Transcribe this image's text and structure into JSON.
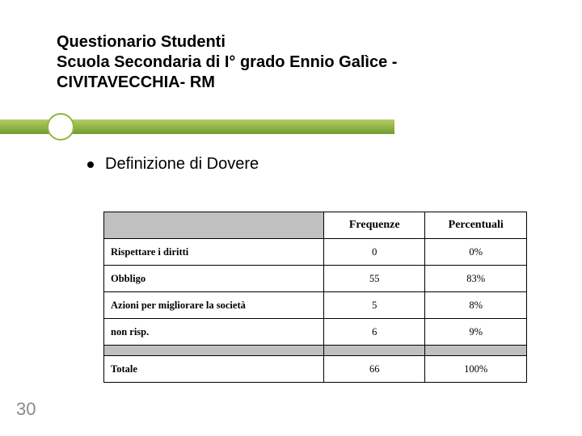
{
  "title": {
    "line1": "Questionario Studenti",
    "line2": " Scuola Secondaria di I° grado Ennio Galìce -",
    "line3": "CIVITAVECCHIA- RM"
  },
  "bullet": "Definizione di Dovere",
  "table": {
    "columns": [
      "",
      "Frequenze",
      "Percentuali"
    ],
    "rows": [
      {
        "label": "Rispettare i diritti",
        "freq": "0",
        "pct": "0%"
      },
      {
        "label": "Obbligo",
        "freq": "55",
        "pct": "83%"
      },
      {
        "label": "Azioni per migliorare la società",
        "freq": "5",
        "pct": "8%"
      },
      {
        "label": "non risp.",
        "freq": "6",
        "pct": "9%"
      }
    ],
    "total": {
      "label": "Totale",
      "freq": "66",
      "pct": "100%"
    }
  },
  "page_number": "30",
  "colors": {
    "accent_green_light": "#b4cc66",
    "accent_green_dark": "#6e9a2e",
    "spacer_gray": "#c0c0c0",
    "page_num_gray": "#8a8a8a",
    "border": "#000000",
    "background": "#ffffff"
  }
}
